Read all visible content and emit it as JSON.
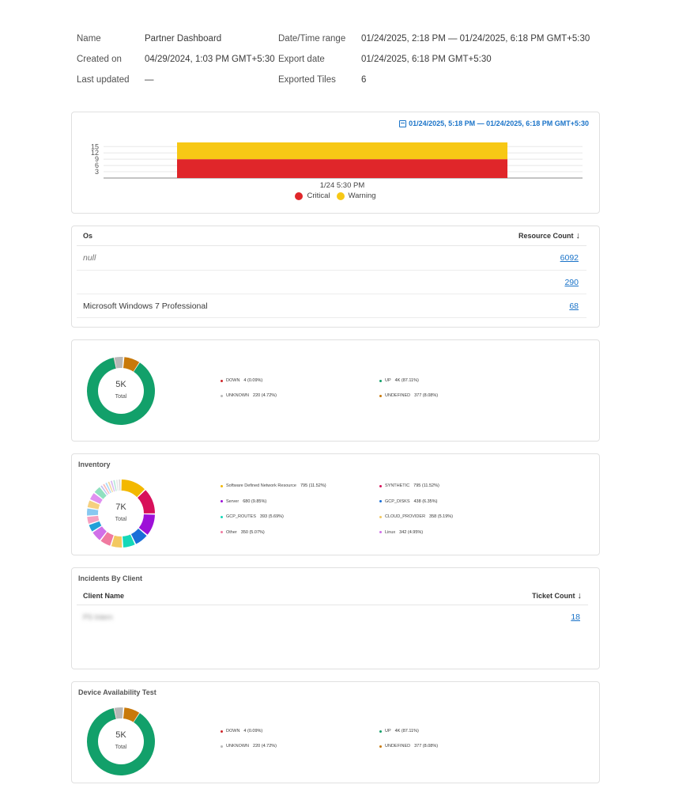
{
  "meta": {
    "name_label": "Name",
    "name_value": "Partner Dashboard",
    "created_label": "Created on",
    "created_value": "04/29/2024, 1:03 PM GMT+5:30",
    "updated_label": "Last updated",
    "updated_value": "—",
    "range_label": "Date/Time range",
    "range_value": "01/24/2025, 2:18 PM — 01/24/2025, 6:18 PM GMT+5:30",
    "export_label": "Export date",
    "export_value": "01/24/2025, 6:18 PM GMT+5:30",
    "tiles_label": "Exported Tiles",
    "tiles_value": "6"
  },
  "alerts": {
    "range": "01/24/2025, 5:18 PM — 01/24/2025, 6:18 PM GMT+5:30",
    "legend": [
      {
        "label": "Critical",
        "color": "#e0262a"
      },
      {
        "label": "Warning",
        "color": "#f7c815"
      }
    ]
  },
  "os_table": {
    "col1": "Os",
    "col2": "Resource Count",
    "sort_icon": "↓",
    "rows": [
      {
        "os": "null",
        "count": "6092"
      },
      {
        "os": "",
        "count": "290"
      },
      {
        "os": "Microsoft Windows 7 Professional",
        "count": "68"
      }
    ]
  },
  "avail1": {
    "center": "5K",
    "sub": "Total",
    "legend": [
      {
        "label": "DOWN",
        "value": "4 (0.09%)",
        "color": "#d0262a"
      },
      {
        "label": "UP",
        "value": "4K (87.11%)",
        "color": "#12a06a"
      },
      {
        "label": "UNKNOWN",
        "value": "220 (4.72%)",
        "color": "#b8b8b8"
      },
      {
        "label": "UNDEFINED",
        "value": "377 (8.08%)",
        "color": "#c8790a"
      }
    ]
  },
  "inventory": {
    "title": "Inventory",
    "center": "7K",
    "sub": "Total",
    "legend": [
      {
        "label": "Software Defined Network Resource",
        "value": "795 (11.52%)",
        "color": "#f3b800"
      },
      {
        "label": "SYNTHETIC",
        "value": "795 (11.52%)",
        "color": "#d8105a"
      },
      {
        "label": "Server",
        "value": "680 (9.85%)",
        "color": "#9d10d8"
      },
      {
        "label": "GCP_DISKS",
        "value": "438 (6.35%)",
        "color": "#1a6fd8"
      },
      {
        "label": "GCP_ROUTES",
        "value": "393 (5.69%)",
        "color": "#14d8b8"
      },
      {
        "label": "CLOUD_PROVIDER",
        "value": "358 (5.19%)",
        "color": "#f3c860"
      },
      {
        "label": "Other",
        "value": "350 (5.07%)",
        "color": "#f07aa0"
      },
      {
        "label": "Linux",
        "value": "342 (4.95%)",
        "color": "#d070e8"
      }
    ]
  },
  "incidents": {
    "title": "Incidents By Client",
    "col1": "Client Name",
    "col2": "Ticket Count",
    "sort_icon": "↓",
    "rows": [
      {
        "client": "PS Intern",
        "count": "18"
      }
    ]
  },
  "avail2": {
    "title": "Device Availability Test",
    "center": "5K",
    "sub": "Total",
    "legend": [
      {
        "label": "DOWN",
        "value": "4 (0.09%)",
        "color": "#d0262a"
      },
      {
        "label": "UP",
        "value": "4K (87.11%)",
        "color": "#12a06a"
      },
      {
        "label": "UNKNOWN",
        "value": "220 (4.72%)",
        "color": "#b8b8b8"
      },
      {
        "label": "UNDEFINED",
        "value": "377 (8.08%)",
        "color": "#c8790a"
      }
    ]
  },
  "chart_data": {
    "type": "bar",
    "categories": [
      "1/24 5:30 PM"
    ],
    "series": [
      {
        "name": "Critical",
        "values": [
          9
        ]
      },
      {
        "name": "Warning",
        "values": [
          8
        ]
      }
    ],
    "stacked": true,
    "yticks": [
      3,
      6,
      9,
      12,
      15
    ],
    "ylim": [
      0,
      17
    ]
  }
}
